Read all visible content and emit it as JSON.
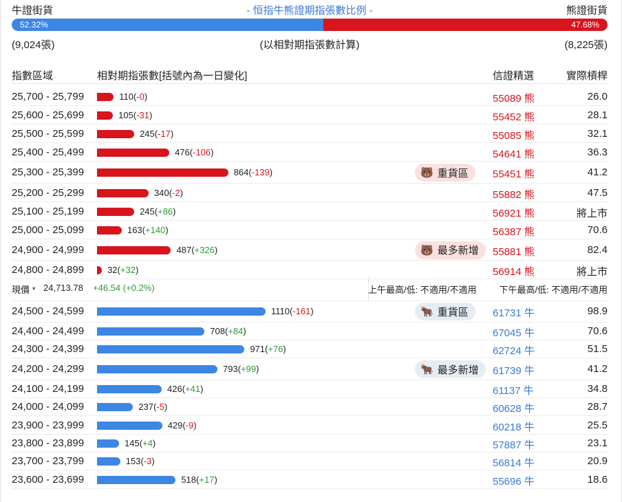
{
  "header": {
    "left": "牛證街貨",
    "center": "- 恒指牛熊證期指張數比例 -",
    "right": "熊證街貨"
  },
  "ratio": {
    "bull_pct": "52.32%",
    "bear_pct": "47.68%",
    "bull_fraction": 0.5232
  },
  "counts": {
    "bull": "(9,024張)",
    "note": "(以相對期指張數計算)",
    "bear": "(8,225張)"
  },
  "columns": {
    "range": "指數區域",
    "contracts": "相對期指張數[括號內為一日變化]",
    "warrant": "信證精選",
    "leverage": "實際槓桿"
  },
  "colors": {
    "bear": "#d8141c",
    "bull": "#3d86e4",
    "up": "#2e9a34",
    "link": "#3a78d8"
  },
  "bear_rows": [
    {
      "range": "25,700 - 25,799",
      "count": "110",
      "change": "-0",
      "sign": "neg",
      "value": 110,
      "warrant": "55089",
      "type": "熊",
      "leverage": "26.0"
    },
    {
      "range": "25,600 - 25,699",
      "count": "105",
      "change": "-31",
      "sign": "neg",
      "value": 105,
      "warrant": "55452",
      "type": "熊",
      "leverage": "28.1"
    },
    {
      "range": "25,500 - 25,599",
      "count": "245",
      "change": "-17",
      "sign": "neg",
      "value": 245,
      "warrant": "55085",
      "type": "熊",
      "leverage": "32.1"
    },
    {
      "range": "25,400 - 25,499",
      "count": "476",
      "change": "-106",
      "sign": "neg",
      "value": 476,
      "warrant": "54641",
      "type": "熊",
      "leverage": "36.3"
    },
    {
      "range": "25,300 - 25,399",
      "count": "864",
      "change": "-139",
      "sign": "neg",
      "value": 864,
      "warrant": "55451",
      "type": "熊",
      "leverage": "41.2",
      "tag": "重貨區"
    },
    {
      "range": "25,200 - 25,299",
      "count": "340",
      "change": "-2",
      "sign": "neg",
      "value": 340,
      "warrant": "55882",
      "type": "熊",
      "leverage": "47.5"
    },
    {
      "range": "25,100 - 25,199",
      "count": "245",
      "change": "+86",
      "sign": "pos",
      "value": 245,
      "warrant": "56921",
      "type": "熊",
      "leverage": "將上市"
    },
    {
      "range": "25,000 - 25,099",
      "count": "163",
      "change": "+140",
      "sign": "pos",
      "value": 163,
      "warrant": "56387",
      "type": "熊",
      "leverage": "70.6"
    },
    {
      "range": "24,900 - 24,999",
      "count": "487",
      "change": "+326",
      "sign": "pos",
      "value": 487,
      "warrant": "55881",
      "type": "熊",
      "leverage": "82.4",
      "tag": "最多新增"
    },
    {
      "range": "24,800 - 24,899",
      "count": "32",
      "change": "+32",
      "sign": "pos",
      "value": 32,
      "warrant": "56914",
      "type": "熊",
      "leverage": "將上市"
    }
  ],
  "current": {
    "label": "現價 *",
    "price": "24,713.78",
    "change": "+46.54 (+0.2%)",
    "am": "上午最高/低: 不適用/不適用",
    "pm": "下午最高/低: 不適用/不適用"
  },
  "bull_rows": [
    {
      "range": "24,500 - 24,599",
      "count": "1110",
      "change": "-161",
      "sign": "neg",
      "value": 1110,
      "warrant": "61731",
      "type": "牛",
      "leverage": "98.9",
      "tag": "重貨區"
    },
    {
      "range": "24,400 - 24,499",
      "count": "708",
      "change": "+84",
      "sign": "pos",
      "value": 708,
      "warrant": "67045",
      "type": "牛",
      "leverage": "70.6"
    },
    {
      "range": "24,300 - 24,399",
      "count": "971",
      "change": "+76",
      "sign": "pos",
      "value": 971,
      "warrant": "62724",
      "type": "牛",
      "leverage": "51.5"
    },
    {
      "range": "24,200 - 24,299",
      "count": "793",
      "change": "+99",
      "sign": "pos",
      "value": 793,
      "warrant": "61739",
      "type": "牛",
      "leverage": "41.2",
      "tag": "最多新增"
    },
    {
      "range": "24,100 - 24,199",
      "count": "426",
      "change": "+41",
      "sign": "pos",
      "value": 426,
      "warrant": "61137",
      "type": "牛",
      "leverage": "34.8"
    },
    {
      "range": "24,000 - 24,099",
      "count": "237",
      "change": "-5",
      "sign": "neg",
      "value": 237,
      "warrant": "60628",
      "type": "牛",
      "leverage": "28.7"
    },
    {
      "range": "23,900 - 23,999",
      "count": "429",
      "change": "-9",
      "sign": "neg",
      "value": 429,
      "warrant": "60218",
      "type": "牛",
      "leverage": "25.5"
    },
    {
      "range": "23,800 - 23,899",
      "count": "145",
      "change": "+4",
      "sign": "pos",
      "value": 145,
      "warrant": "57887",
      "type": "牛",
      "leverage": "23.1"
    },
    {
      "range": "23,700 - 23,799",
      "count": "153",
      "change": "-3",
      "sign": "neg",
      "value": 153,
      "warrant": "56814",
      "type": "牛",
      "leverage": "20.9"
    },
    {
      "range": "23,600 - 23,699",
      "count": "518",
      "change": "+17",
      "sign": "pos",
      "value": 518,
      "warrant": "55696",
      "type": "牛",
      "leverage": "18.6"
    }
  ]
}
